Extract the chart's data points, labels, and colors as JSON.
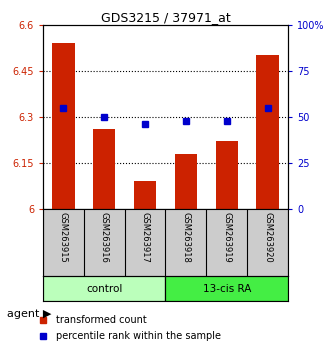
{
  "title": "GDS3215 / 37971_at",
  "samples": [
    "GSM263915",
    "GSM263916",
    "GSM263917",
    "GSM263918",
    "GSM263919",
    "GSM263920"
  ],
  "red_values": [
    6.54,
    6.26,
    6.09,
    6.18,
    6.22,
    6.5
  ],
  "blue_values": [
    55,
    50,
    46,
    48,
    48,
    55
  ],
  "ylim_left": [
    6.0,
    6.6
  ],
  "ylim_right": [
    0,
    100
  ],
  "yticks_left": [
    6.0,
    6.15,
    6.3,
    6.45,
    6.6
  ],
  "ytick_labels_left": [
    "6",
    "6.15",
    "6.3",
    "6.45",
    "6.6"
  ],
  "yticks_right": [
    0,
    25,
    50,
    75,
    100
  ],
  "ytick_labels_right": [
    "0",
    "25",
    "50",
    "75",
    "100%"
  ],
  "groups": [
    {
      "label": "control",
      "indices": [
        0,
        1,
        2
      ],
      "color": "#bbffbb"
    },
    {
      "label": "13-cis RA",
      "indices": [
        3,
        4,
        5
      ],
      "color": "#44ee44"
    }
  ],
  "bar_color": "#cc2200",
  "dot_color": "#0000cc",
  "agent_label": "agent",
  "legend_red": "transformed count",
  "legend_blue": "percentile rank within the sample",
  "bar_base": 6.0,
  "background_color": "#ffffff",
  "label_bg_color": "#cccccc",
  "plot_bg_color": "#ffffff"
}
